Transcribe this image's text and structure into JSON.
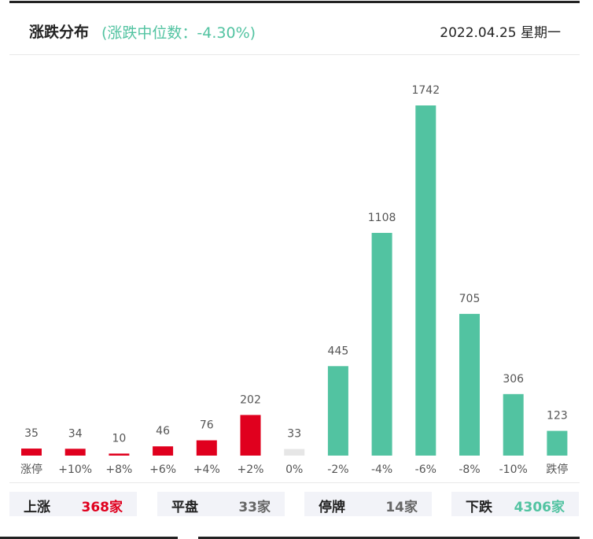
{
  "header": {
    "title": "涨跌分布",
    "subtitle": "(涨跌中位数：-4.30%)",
    "date": "2022.04.25 星期一"
  },
  "colors": {
    "up": "#e0001e",
    "flat": "#e6e6e6",
    "down": "#52c3a1"
  },
  "chart_data": {
    "type": "bar",
    "categories": [
      "涨停",
      "+10%",
      "+8%",
      "+6%",
      "+4%",
      "+2%",
      "0%",
      "-2%",
      "-4%",
      "-6%",
      "-8%",
      "-10%",
      "跌停"
    ],
    "values": [
      35,
      34,
      10,
      46,
      76,
      202,
      33,
      445,
      1108,
      1742,
      705,
      306,
      123
    ],
    "bar_colors": [
      "up",
      "up",
      "up",
      "up",
      "up",
      "up",
      "flat",
      "down",
      "down",
      "down",
      "down",
      "down",
      "down"
    ],
    "ylim": [
      0,
      1742
    ],
    "grid": false
  },
  "summary": [
    {
      "label": "上涨",
      "value": "368家",
      "color": "#e0001e"
    },
    {
      "label": "平盘",
      "value": "33家",
      "color": "#666666"
    },
    {
      "label": "停牌",
      "value": "14家",
      "color": "#666666"
    },
    {
      "label": "下跌",
      "value": "4306家",
      "color": "#52c3a1"
    }
  ]
}
